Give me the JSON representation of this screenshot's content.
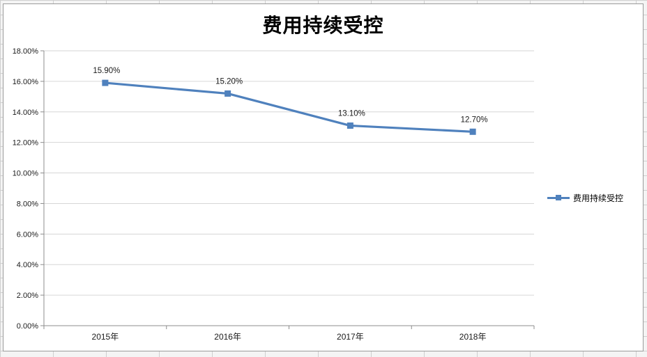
{
  "chart_data": {
    "type": "line",
    "title": "费用持续受控",
    "categories": [
      "2015年",
      "2016年",
      "2017年",
      "2018年"
    ],
    "series": [
      {
        "name": "费用持续受控",
        "values": [
          15.9,
          15.2,
          13.1,
          12.7
        ],
        "color": "#4f81bd"
      }
    ],
    "data_labels": [
      "15.90%",
      "15.20%",
      "13.10%",
      "12.70%"
    ],
    "xlabel": "",
    "ylabel": "",
    "ylim": [
      0,
      18
    ],
    "ytick_step": 2,
    "ytick_labels": [
      "0.00%",
      "2.00%",
      "4.00%",
      "6.00%",
      "8.00%",
      "10.00%",
      "12.00%",
      "14.00%",
      "16.00%",
      "18.00%"
    ],
    "grid": true,
    "legend": {
      "label": "费用持续受控",
      "position": "right"
    },
    "colors": {
      "series_line": "#4f81bd",
      "gridline": "#d6d6d6",
      "axis": "#8c8c8c",
      "text": "#1a1a1a"
    }
  }
}
